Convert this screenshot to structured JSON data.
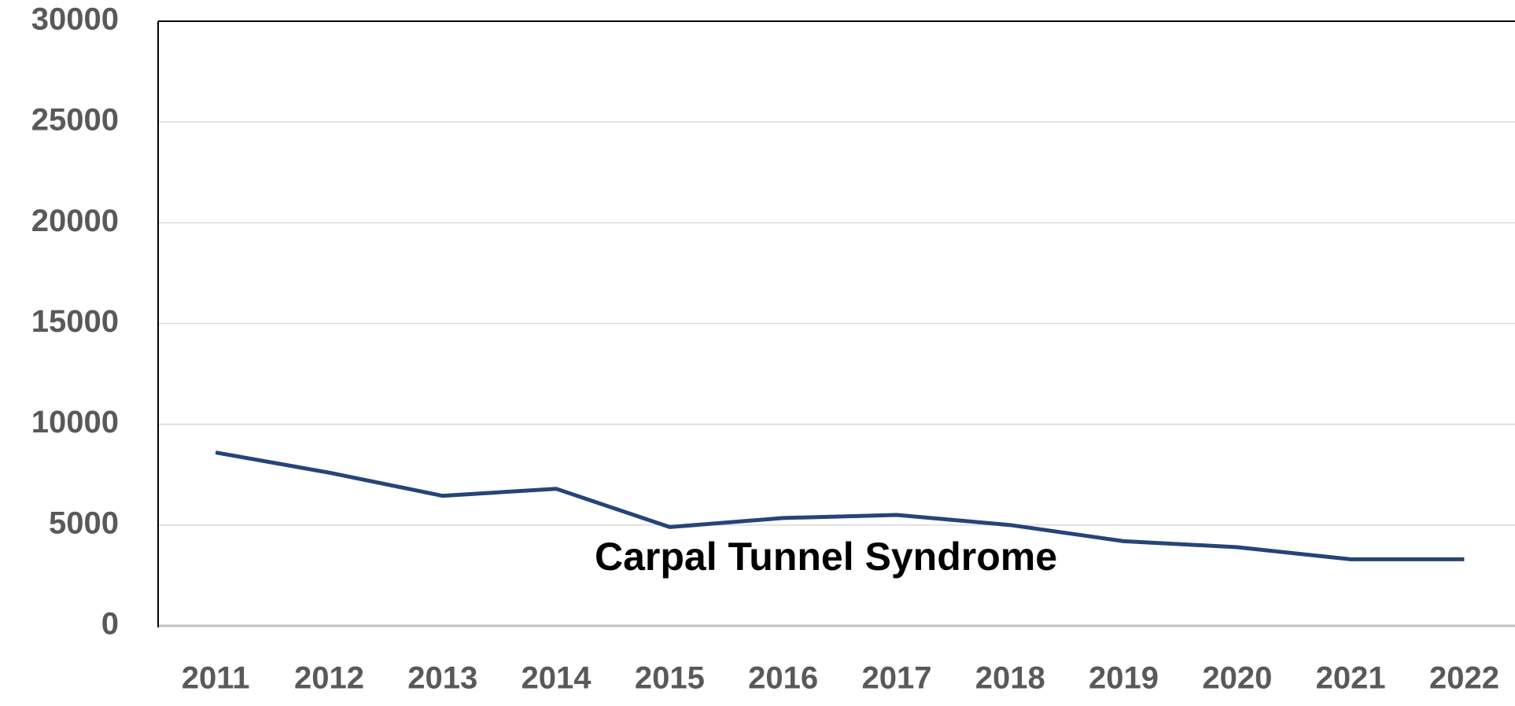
{
  "chart_data": {
    "type": "line",
    "categories": [
      "2011",
      "2012",
      "2013",
      "2014",
      "2015",
      "2016",
      "2017",
      "2018",
      "2019",
      "2020",
      "2021",
      "2022"
    ],
    "series": [
      {
        "name": "Carpal Tunnel Syndrome",
        "color": "#264478",
        "values": [
          8600,
          7600,
          6450,
          6800,
          4900,
          5350,
          5500,
          5000,
          4200,
          3900,
          3300,
          3300
        ]
      }
    ],
    "ylim": [
      0,
      30000
    ],
    "yticks": [
      0,
      5000,
      10000,
      15000,
      20000,
      25000,
      30000
    ],
    "grid": true
  }
}
